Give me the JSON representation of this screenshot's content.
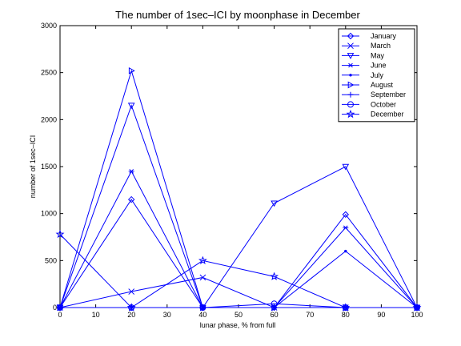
{
  "chart_data": {
    "type": "line",
    "title": "The number of 1sec–ICI by moonphase in December",
    "xlabel": "lunar phase, % from full",
    "ylabel": "number of 1sec–ICI",
    "xlim": [
      0,
      100
    ],
    "ylim": [
      0,
      3000
    ],
    "xticks": [
      0,
      10,
      20,
      30,
      40,
      50,
      60,
      70,
      80,
      90,
      100
    ],
    "yticks": [
      0,
      500,
      1000,
      1500,
      2000,
      2500,
      3000
    ],
    "x": [
      0,
      20,
      40,
      60,
      80,
      100
    ],
    "grid": false,
    "legend_position": "top-right",
    "line_color": "#0000ff",
    "series": [
      {
        "name": "January",
        "marker": "diamond",
        "values": [
          0,
          1150,
          0,
          0,
          990,
          0
        ]
      },
      {
        "name": "March",
        "marker": "x",
        "values": [
          0,
          170,
          320,
          0,
          0,
          0
        ]
      },
      {
        "name": "May",
        "marker": "triangle-down",
        "values": [
          0,
          2150,
          0,
          1110,
          1500,
          0
        ]
      },
      {
        "name": "June",
        "marker": "asterisk",
        "values": [
          0,
          1450,
          0,
          0,
          850,
          0
        ]
      },
      {
        "name": "July",
        "marker": "dot",
        "values": [
          0,
          0,
          0,
          0,
          600,
          0
        ]
      },
      {
        "name": "August",
        "marker": "triangle-right",
        "values": [
          0,
          2520,
          0,
          0,
          0,
          0
        ]
      },
      {
        "name": "September",
        "marker": "plus",
        "values": [
          0,
          0,
          0,
          0,
          0,
          0
        ]
      },
      {
        "name": "October",
        "marker": "circle",
        "values": [
          0,
          0,
          0,
          40,
          0,
          0
        ]
      },
      {
        "name": "December",
        "marker": "pentagram",
        "values": [
          780,
          0,
          500,
          330,
          0,
          0
        ]
      }
    ]
  }
}
